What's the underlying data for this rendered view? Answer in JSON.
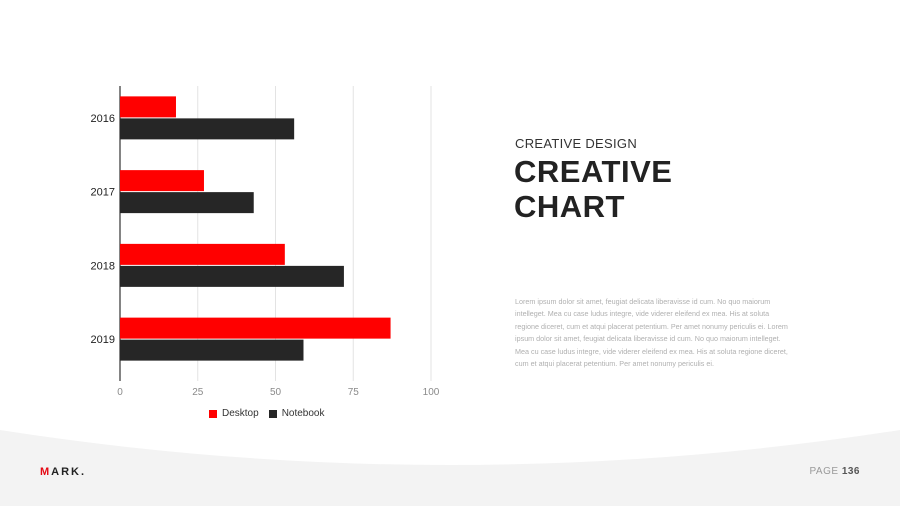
{
  "colors": {
    "desktop": "#ff0000",
    "notebook": "#262626",
    "accent": "#e50914"
  },
  "chart_data": {
    "type": "bar",
    "orientation": "horizontal",
    "categories": [
      "2016",
      "2017",
      "2018",
      "2019"
    ],
    "series": [
      {
        "name": "Desktop",
        "values": [
          18,
          27,
          53,
          87
        ]
      },
      {
        "name": "Notebook",
        "values": [
          56,
          43,
          72,
          59
        ]
      }
    ],
    "xlim": [
      0,
      100
    ],
    "xticks": [
      "0",
      "25",
      "50",
      "75",
      "100"
    ],
    "grid": true,
    "legend": "bottom-center"
  },
  "slide": {
    "kicker": "CREATIVE DESIGN",
    "title_line1": "CREATIVE",
    "title_line2": "CHART",
    "body": "Lorem ipsum dolor sit amet, feugiat delicata liberavisse id cum. No quo maiorum intelleget. Mea cu case ludus integre, vide viderer eleifend ex mea. His at soluta regione diceret, cum et atqui placerat petentium. Per amet nonumy periculis ei. Lorem ipsum dolor sit amet, feugiat delicata liberavisse id cum. No quo maiorum intelleget. Mea cu case ludus integre, vide viderer eleifend ex mea. His at soluta regione diceret, cum et atqui placerat petentium. Per amet nonumy periculis ei."
  },
  "footer": {
    "logo_main": "MARK",
    "logo_accent": "M",
    "logo_rest": "ARK.",
    "page_label": "PAGE",
    "page_number": "136"
  }
}
